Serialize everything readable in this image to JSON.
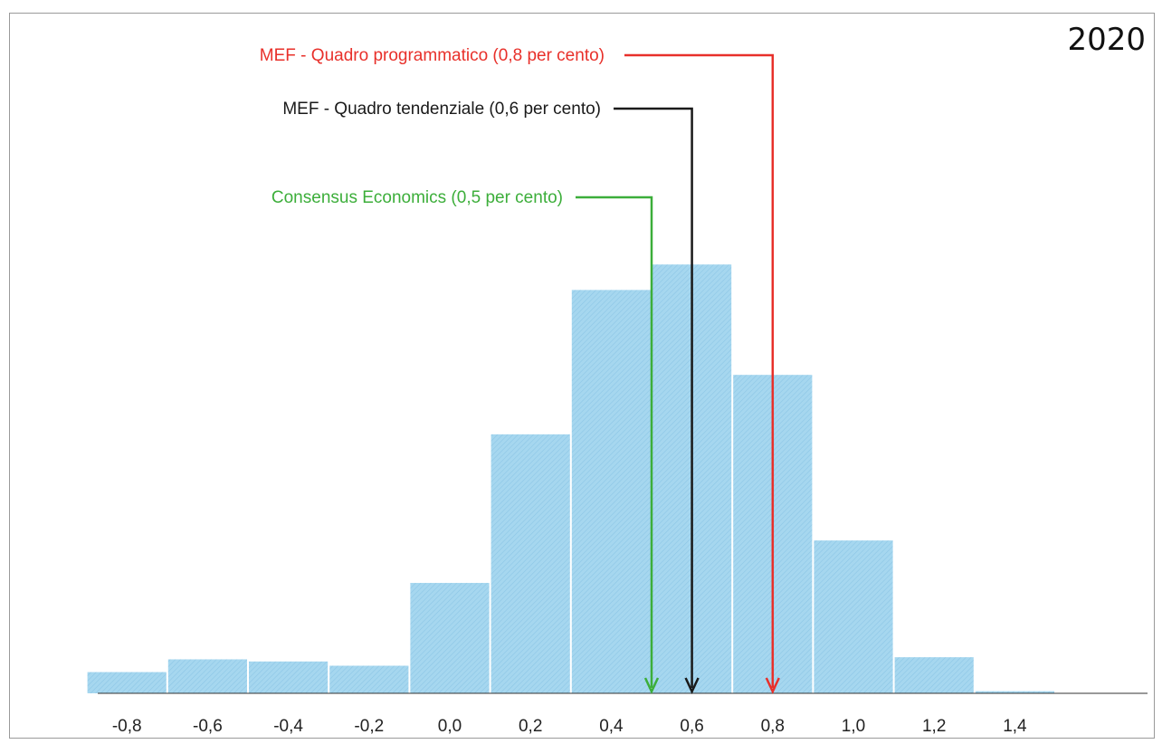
{
  "year_label": "2020",
  "chart_data": {
    "type": "bar",
    "categories": [
      "-0,8",
      "-0,6",
      "-0,4",
      "-0,2",
      "0,0",
      "0,2",
      "0,4",
      "0,6",
      "0,8",
      "1,0",
      "1,2",
      "1,4"
    ],
    "x_centers": [
      -0.8,
      -0.6,
      -0.4,
      -0.2,
      0.0,
      0.2,
      0.4,
      0.6,
      0.8,
      1.0,
      1.2,
      1.4
    ],
    "values": [
      5,
      8,
      7.5,
      6.5,
      26,
      61,
      95,
      101,
      75,
      36,
      8.5,
      0.5
    ],
    "ylim": [
      0,
      110
    ],
    "bar_color": "#9fd3ec",
    "annotations": [
      {
        "label": "MEF - Quadro programmatico (0,8 per cento)",
        "x": 0.8,
        "color": "#e8302a"
      },
      {
        "label": "MEF - Quadro tendenziale (0,6 per cento)",
        "x": 0.6,
        "color": "#1a1a1a"
      },
      {
        "label": "Consensus Economics (0,5 per cento)",
        "x": 0.5,
        "color": "#3cae3a"
      }
    ]
  }
}
